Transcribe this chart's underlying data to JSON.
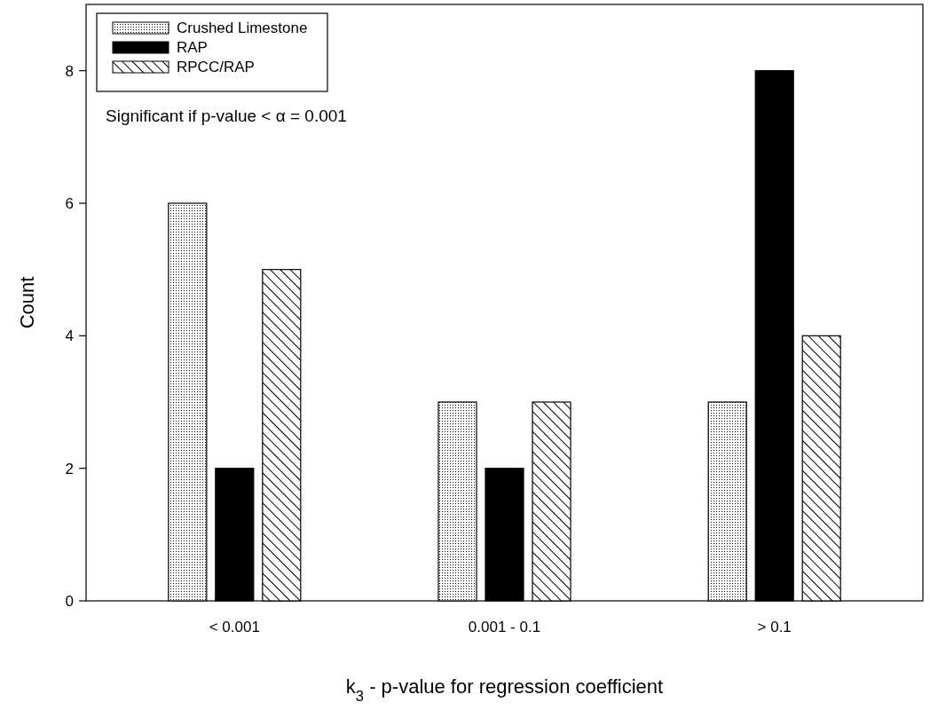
{
  "chart_data": {
    "type": "bar",
    "categories": [
      "< 0.001",
      "0.001 - 0.1",
      "> 0.1"
    ],
    "series": [
      {
        "name": "Crushed Limestone",
        "color": "#000000",
        "values": [
          6,
          3,
          3
        ]
      },
      {
        "name": "RAP",
        "color": "#000000",
        "values": [
          2,
          2,
          8
        ]
      },
      {
        "name": "RPCC/RAP",
        "color": "#000000",
        "values": [
          5,
          3,
          4
        ]
      }
    ],
    "ylim": [
      0,
      9
    ],
    "yticks": [
      0,
      2,
      4,
      6,
      8
    ],
    "xlabel": "k$_{3}$ - p-value for regression coefficient",
    "ylabel": "Count",
    "annotations": [
      "Significant if p-value < α = 0.001"
    ],
    "legend": "top left",
    "grid": false
  }
}
